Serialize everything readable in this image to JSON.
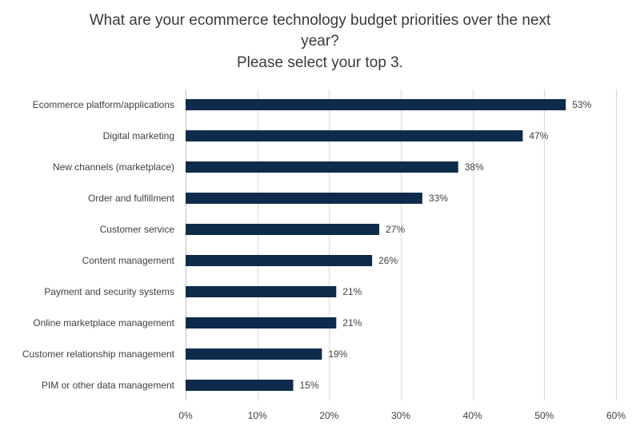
{
  "title_lines": [
    "What are your ecommerce technology budget priorities over the next",
    "year?",
    "Please select your top 3."
  ],
  "chart_data": {
    "type": "bar",
    "orientation": "horizontal",
    "title": "What are your ecommerce technology budget priorities over the next year? Please select your top 3.",
    "categories": [
      "Ecommerce platform/applications",
      "Digital marketing",
      "New channels (marketplace)",
      "Order and fulfillment",
      "Customer service",
      "Content management",
      "Payment and security systems",
      "Online marketplace management",
      "Customer relationship management",
      "PIM or other data management"
    ],
    "values": [
      53,
      47,
      38,
      33,
      27,
      26,
      21,
      21,
      19,
      15
    ],
    "value_labels": [
      "53%",
      "47%",
      "38%",
      "33%",
      "27%",
      "26%",
      "21%",
      "21%",
      "19%",
      "15%"
    ],
    "x_ticks": [
      0,
      10,
      20,
      30,
      40,
      50,
      60
    ],
    "x_tick_labels": [
      "0%",
      "10%",
      "20%",
      "30%",
      "40%",
      "50%",
      "60%"
    ],
    "xlim": [
      0,
      60
    ],
    "grid": "vertical",
    "legend": "none",
    "bar_color": "#0e2b4c",
    "grid_color": "#d9d9d9"
  }
}
